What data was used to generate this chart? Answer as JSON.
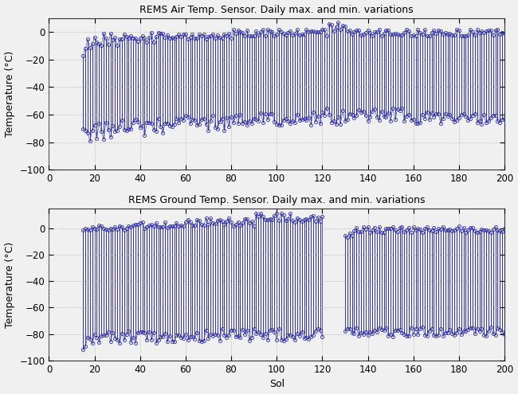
{
  "title_air": "REMS Air Temp. Sensor. Daily max. and min. variations",
  "title_ground": "REMS Ground Temp. Sensor. Daily max. and min. variations",
  "xlabel": "Sol",
  "ylabel": "Temperature (°C)",
  "xlim": [
    0,
    200
  ],
  "ylim_air": [
    -100,
    10
  ],
  "ylim_ground": [
    -100,
    15
  ],
  "xticks": [
    0,
    20,
    40,
    60,
    80,
    100,
    120,
    140,
    160,
    180,
    200
  ],
  "yticks": [
    -100,
    -80,
    -60,
    -40,
    -20,
    0
  ],
  "line_color": "#3333aa",
  "background_color": "#f5f5f5",
  "figsize": [
    6.5,
    4.95
  ],
  "dpi": 100,
  "air_sol_start": 15,
  "air_sol_end": 200,
  "ground_sol_start": 15,
  "ground_sol_end": 200,
  "ground_gap_start": 121,
  "ground_gap_end": 130
}
